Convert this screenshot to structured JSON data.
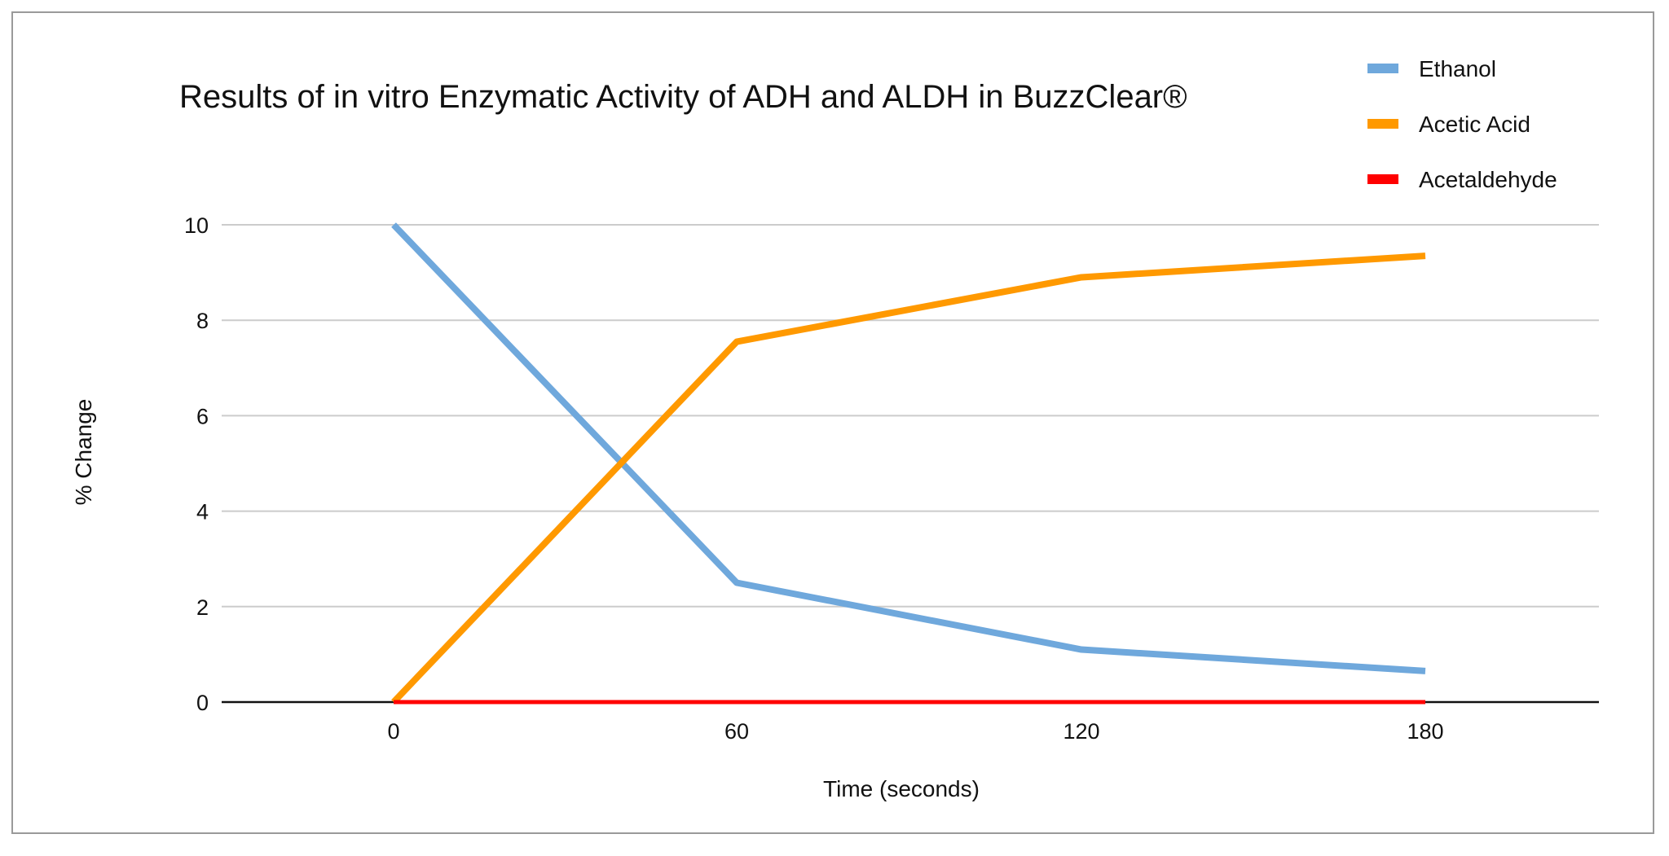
{
  "chart_data": {
    "type": "line",
    "title": "Results of in vitro Enzymatic Activity of ADH and ALDH in BuzzClear®",
    "xlabel": "Time (seconds)",
    "ylabel": "% Change",
    "x": [
      0,
      60,
      120,
      180
    ],
    "x_tick_labels": [
      "0",
      "60",
      "120",
      "180"
    ],
    "y_tick_labels": [
      "0",
      "2",
      "4",
      "6",
      "8",
      "10"
    ],
    "ylim": [
      0,
      10
    ],
    "grid": true,
    "legend_position": "top-right",
    "series": [
      {
        "name": "Ethanol",
        "color": "#6fa8dc",
        "values": [
          10,
          2.5,
          1.1,
          0.65
        ]
      },
      {
        "name": "Acetic Acid",
        "color": "#ff9900",
        "values": [
          0,
          7.55,
          8.9,
          9.35
        ]
      },
      {
        "name": "Acetaldehyde",
        "color": "#ff0000",
        "values": [
          0,
          0,
          0,
          0
        ]
      }
    ]
  }
}
